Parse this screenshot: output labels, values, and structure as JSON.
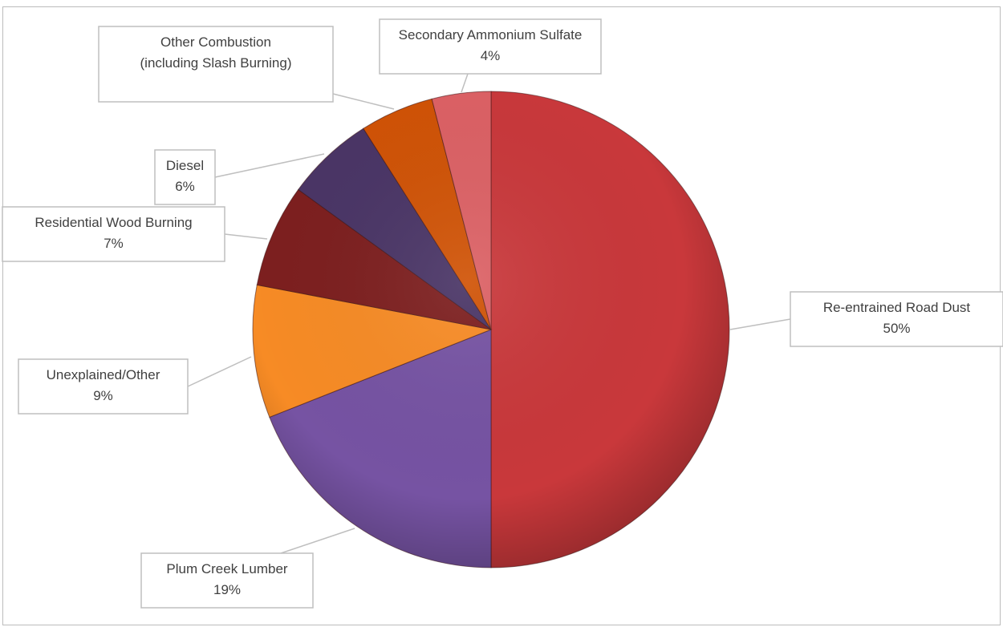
{
  "chart_data": {
    "type": "pie",
    "title": "",
    "start_angle_deg": 0,
    "direction": "clockwise",
    "legend": "none",
    "slices": [
      {
        "label": "Re-entrained Road Dust",
        "value": 50,
        "pct_label": "50%",
        "color": "#C9383B"
      },
      {
        "label": "Plum Creek Lumber",
        "value": 19,
        "pct_label": "19%",
        "color": "#7653A3"
      },
      {
        "label": "Unexplained/Other",
        "value": 9,
        "pct_label": "9%",
        "color": "#F78B25"
      },
      {
        "label": "Residential Wood Burning",
        "value": 7,
        "pct_label": "7%",
        "color": "#7D1F1F"
      },
      {
        "label": "Diesel",
        "value": 6,
        "pct_label": "6%",
        "color": "#4A3566"
      },
      {
        "label": "Other Combustion (including Slash Burning)",
        "value": 5,
        "pct_label": "",
        "color": "#D05306"
      },
      {
        "label": "Secondary Ammonium Sulfate",
        "value": 4,
        "pct_label": "4%",
        "color": "#DC6165"
      }
    ]
  }
}
